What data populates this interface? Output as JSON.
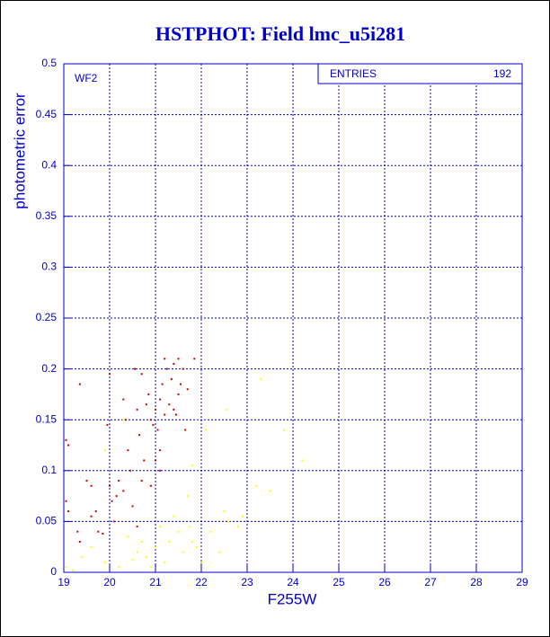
{
  "chart_data": {
    "type": "scatter",
    "title": "HSTPHOT: Field lmc_u5i281",
    "panel_label": "WF2",
    "stats_label": "ENTRIES",
    "stats_value": 192,
    "x_label": "F255W",
    "y_label": "photometric error",
    "xlim": [
      19,
      29
    ],
    "ylim": [
      0,
      0.5
    ],
    "xticks": [
      19,
      20,
      21,
      22,
      23,
      24,
      25,
      26,
      27,
      28,
      29
    ],
    "yticks": [
      0,
      0.05,
      0.1,
      0.15,
      0.2,
      0.25,
      0.3,
      0.35,
      0.4,
      0.45,
      0.5
    ],
    "grid": true,
    "series": [
      {
        "color": "#cc0000",
        "x": [
          19.05,
          19.1,
          19.05,
          19.1,
          19.35,
          19.3,
          19.35,
          19.5,
          19.6,
          19.6,
          19.7,
          19.75,
          19.85,
          19.95,
          20.0,
          20.0,
          20.05,
          20.1,
          20.15,
          20.2,
          20.3,
          20.3,
          20.35,
          20.4,
          20.45,
          20.5,
          20.55,
          20.6,
          20.65,
          20.7,
          20.7,
          20.75,
          20.8,
          20.85,
          20.9,
          20.95,
          21.0,
          21.0,
          21.05,
          21.1,
          21.1,
          21.15,
          21.2,
          21.2,
          21.25,
          21.3,
          21.35,
          21.4,
          21.4,
          21.45,
          21.5,
          21.5,
          21.55,
          21.6,
          21.65,
          21.7,
          21.85,
          21.1,
          20.6,
          20.9
        ],
        "y": [
          0.13,
          0.125,
          0.07,
          0.06,
          0.185,
          0.04,
          0.03,
          0.09,
          0.085,
          0.055,
          0.06,
          0.04,
          0.038,
          0.145,
          0.195,
          0.085,
          0.07,
          0.05,
          0.075,
          0.09,
          0.08,
          0.17,
          0.15,
          0.12,
          0.1,
          0.065,
          0.2,
          0.16,
          0.135,
          0.195,
          0.09,
          0.11,
          0.165,
          0.175,
          0.15,
          0.145,
          0.11,
          0.16,
          0.14,
          0.17,
          0.12,
          0.185,
          0.21,
          0.155,
          0.2,
          0.165,
          0.19,
          0.205,
          0.16,
          0.155,
          0.21,
          0.175,
          0.185,
          0.2,
          0.14,
          0.18,
          0.21,
          0.1,
          0.045,
          0.085
        ]
      },
      {
        "color": "#ffff00",
        "x": [
          19.05,
          19.2,
          19.4,
          19.6,
          19.9,
          20.2,
          20.4,
          20.5,
          20.6,
          20.7,
          20.8,
          20.9,
          21.0,
          21.1,
          21.2,
          21.3,
          21.4,
          21.5,
          21.6,
          21.7,
          21.75,
          21.8,
          21.9,
          22.0,
          22.1,
          22.2,
          22.5,
          22.55,
          22.6,
          22.8,
          23.2,
          23.3,
          23.5,
          23.8,
          24.2,
          22.4,
          21.8,
          20.3,
          19.9,
          22.9
        ],
        "y": [
          0.005,
          0.002,
          0.015,
          0.025,
          0.01,
          0.005,
          0.035,
          0.012,
          0.02,
          0.03,
          0.015,
          0.005,
          0.025,
          0.045,
          0.01,
          0.03,
          0.055,
          0.04,
          0.02,
          0.075,
          0.045,
          0.03,
          0.025,
          0.01,
          0.14,
          0.04,
          0.06,
          0.16,
          0.05,
          0.045,
          0.085,
          0.19,
          0.08,
          0.14,
          0.11,
          0.02,
          0.105,
          0.15,
          0.12,
          0.055
        ]
      }
    ]
  }
}
